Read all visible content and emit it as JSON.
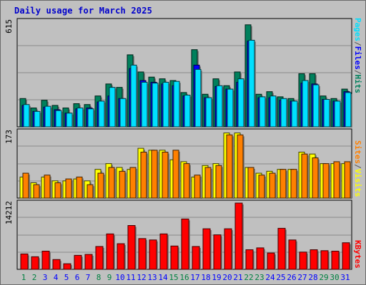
{
  "title": "Daily usage for March 2025",
  "colors": {
    "hits": "#00805c",
    "files": "#0000ff",
    "pages": "#00e0ff",
    "visits": "#ffff00",
    "sites": "#ff8000",
    "kbytes": "#ff0000",
    "weekday_label": "#0000ff",
    "weekend_label": "#008040"
  },
  "chart_data": [
    {
      "type": "bar",
      "panel": "top",
      "ymax_label": "615",
      "ylim": [
        0,
        615
      ],
      "categories": [
        "1",
        "2",
        "3",
        "4",
        "5",
        "6",
        "7",
        "8",
        "9",
        "10",
        "11",
        "12",
        "13",
        "14",
        "15",
        "16",
        "17",
        "18",
        "19",
        "20",
        "21",
        "22",
        "23",
        "24",
        "25",
        "26",
        "27",
        "28",
        "29",
        "30",
        "31"
      ],
      "legend": [
        "Pages",
        "Files",
        "Hits"
      ],
      "series": [
        {
          "name": "Hits",
          "values": [
            165,
            110,
            155,
            125,
            110,
            135,
            130,
            180,
            250,
            230,
            420,
            320,
            290,
            280,
            270,
            200,
            450,
            190,
            280,
            240,
            320,
            595,
            190,
            205,
            175,
            165,
            310,
            310,
            180,
            165,
            220
          ]
        },
        {
          "name": "Files",
          "values": [
            125,
            90,
            115,
            100,
            80,
            105,
            110,
            145,
            180,
            165,
            340,
            270,
            260,
            250,
            240,
            180,
            360,
            170,
            235,
            220,
            260,
            500,
            170,
            170,
            155,
            150,
            255,
            250,
            160,
            150,
            205
          ]
        },
        {
          "name": "Pages",
          "values": [
            130,
            90,
            120,
            95,
            80,
            110,
            105,
            150,
            230,
            165,
            360,
            260,
            255,
            260,
            265,
            185,
            335,
            170,
            240,
            220,
            280,
            505,
            175,
            180,
            165,
            150,
            270,
            245,
            160,
            150,
            200
          ]
        }
      ]
    },
    {
      "type": "bar",
      "panel": "middle",
      "ymax_label": "173",
      "ylim": [
        0,
        173
      ],
      "categories": [
        "1",
        "2",
        "3",
        "4",
        "5",
        "6",
        "7",
        "8",
        "9",
        "10",
        "11",
        "12",
        "13",
        "14",
        "15",
        "16",
        "17",
        "18",
        "19",
        "20",
        "21",
        "22",
        "23",
        "24",
        "25",
        "26",
        "27",
        "28",
        "29",
        "30",
        "31"
      ],
      "legend": [
        "Sites",
        "Visits"
      ],
      "series": [
        {
          "name": "Visits",
          "values": [
            55,
            40,
            55,
            45,
            45,
            50,
            45,
            75,
            90,
            80,
            75,
            130,
            125,
            125,
            100,
            95,
            55,
            85,
            90,
            170,
            170,
            80,
            65,
            70,
            75,
            75,
            120,
            115,
            90,
            90,
            90
          ]
        },
        {
          "name": "Sites",
          "values": [
            65,
            35,
            60,
            40,
            50,
            55,
            35,
            65,
            80,
            70,
            80,
            120,
            125,
            120,
            125,
            90,
            60,
            80,
            85,
            165,
            165,
            80,
            60,
            65,
            75,
            75,
            115,
            105,
            90,
            95,
            95
          ]
        }
      ]
    },
    {
      "type": "bar",
      "panel": "bottom",
      "ymax_label": "14212",
      "ylim": [
        0,
        14212
      ],
      "categories": [
        "1",
        "2",
        "3",
        "4",
        "5",
        "6",
        "7",
        "8",
        "9",
        "10",
        "11",
        "12",
        "13",
        "14",
        "15",
        "16",
        "17",
        "18",
        "19",
        "20",
        "21",
        "22",
        "23",
        "24",
        "25",
        "26",
        "27",
        "28",
        "29",
        "30",
        "31"
      ],
      "legend": [
        "KBytes"
      ],
      "series": [
        {
          "name": "KBytes",
          "values": [
            3300,
            2700,
            3900,
            2100,
            1200,
            3000,
            3200,
            4900,
            7600,
            5500,
            9400,
            6600,
            6300,
            7600,
            5000,
            10800,
            4900,
            8700,
            7400,
            8700,
            14212,
            4200,
            4600,
            3500,
            8800,
            6300,
            3700,
            4200,
            4000,
            3900,
            5700
          ]
        }
      ]
    }
  ],
  "weekend_days": [
    "1",
    "2",
    "8",
    "9",
    "15",
    "16",
    "22",
    "23",
    "29",
    "30"
  ]
}
